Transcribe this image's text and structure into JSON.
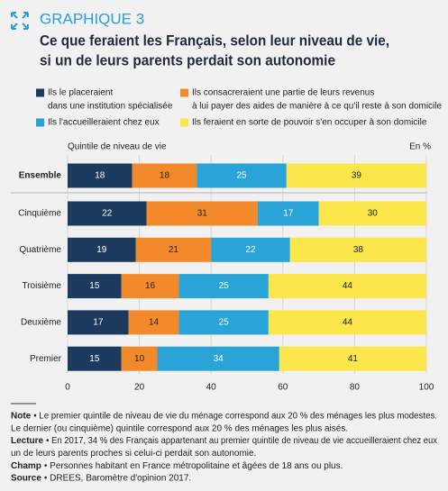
{
  "header": {
    "kicker": "GRAPHIQUE 3",
    "title": [
      "Ce que feraient les Français, selon leur niveau de vie,",
      "si un de leurs parents perdait son autonomie"
    ]
  },
  "chart_data": {
    "type": "bar",
    "orientation": "horizontal",
    "stacked": true,
    "y_axis_label": "Quintile de niveau de vie",
    "unit_label": "En %",
    "categories": [
      "Ensemble",
      "Cinquième",
      "Quatrième",
      "Troisième",
      "Deuxième",
      "Premier"
    ],
    "series": [
      {
        "name": [
          "Ils le placeraient",
          "dans une institution spécialisée"
        ],
        "color": "#1b3a5e",
        "values": [
          18,
          22,
          19,
          15,
          17,
          15
        ]
      },
      {
        "name": [
          "Ils consacreraient une partie de leurs revenus",
          "à lui payer des aides de manière à ce qu'il reste à son domicile"
        ],
        "color": "#f28a2c",
        "values": [
          18,
          31,
          21,
          16,
          14,
          10
        ]
      },
      {
        "name": [
          "Ils l'accueilleraient chez eux"
        ],
        "color": "#2aa3d8",
        "values": [
          25,
          17,
          22,
          25,
          25,
          34
        ]
      },
      {
        "name": [
          "Ils feraient en sorte de pouvoir s'en occuper à son domicile"
        ],
        "color": "#fbe64c",
        "values": [
          39,
          30,
          38,
          44,
          44,
          41
        ]
      }
    ],
    "xlim": [
      0,
      100
    ],
    "xticks": [
      0,
      20,
      40,
      60,
      80,
      100
    ],
    "grid": true
  },
  "notes": [
    {
      "label": "Note",
      "text": [
        "• Le premier quintile de niveau de vie du ménage correspond aux 20 % des ménages les plus modestes.",
        "Le dernier (ou cinquième) quintile correspond aux 20 % des ménages les plus aisés."
      ]
    },
    {
      "label": "Lecture",
      "text": [
        "• En 2017, 34 % des Français appartenant au premier quintile de niveau de vie accueilleraient chez eux",
        "un de leurs parents proches si celui-ci perdait son autonomie."
      ]
    },
    {
      "label": "Champ",
      "text": [
        "• Personnes habitant en France métropolitaine et âgées de 18 ans ou plus."
      ]
    },
    {
      "label": "Source",
      "text": [
        "• DREES, Baromètre d'opinion 2017."
      ]
    }
  ]
}
